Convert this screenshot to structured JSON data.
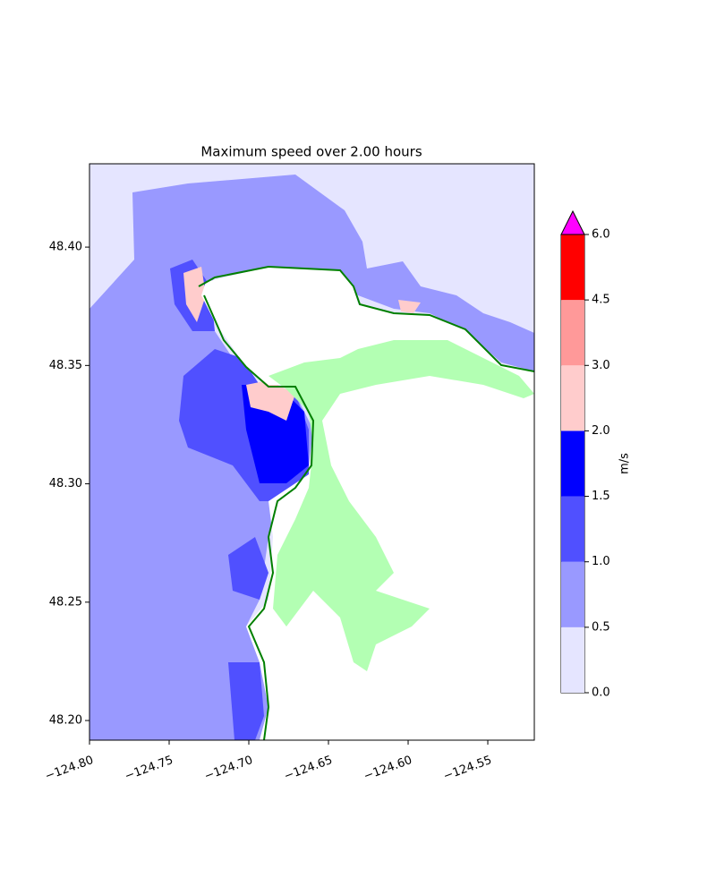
{
  "chart_data": {
    "type": "map",
    "title": "Maximum speed over 2.00 hours",
    "xlim": [
      -124.8,
      -124.5208
    ],
    "ylim": [
      48.1917,
      48.4352
    ],
    "xticks": [
      {
        "value": -124.8,
        "label": "−124.80"
      },
      {
        "value": -124.75,
        "label": "−124.75"
      },
      {
        "value": -124.7,
        "label": "−124.70"
      },
      {
        "value": -124.65,
        "label": "−124.65"
      },
      {
        "value": -124.6,
        "label": "−124.60"
      },
      {
        "value": -124.55,
        "label": "−124.55"
      }
    ],
    "yticks": [
      {
        "value": 48.2,
        "label": "48.20"
      },
      {
        "value": 48.25,
        "label": "48.25"
      },
      {
        "value": 48.3,
        "label": "48.30"
      },
      {
        "value": 48.35,
        "label": "48.35"
      },
      {
        "value": 48.4,
        "label": "48.40"
      }
    ],
    "colorbar": {
      "label": "m/s",
      "boundaries": [
        {
          "value": 0,
          "label": "0.0"
        },
        {
          "value": 0.5,
          "label": "0.5"
        },
        {
          "value": 1,
          "label": "1.0"
        },
        {
          "value": 1.5,
          "label": "1.5"
        },
        {
          "value": 2,
          "label": "2.0"
        },
        {
          "value": 3,
          "label": "3.0"
        },
        {
          "value": 4.5,
          "label": "4.5"
        },
        {
          "value": 6,
          "label": "6.0"
        }
      ],
      "colors": [
        "#e5e5ff",
        "#9999ff",
        "#5050ff",
        "#0000ff",
        "#ffcccc",
        "#ff9999",
        "#ff0000"
      ],
      "extend_color": "#ff00ff"
    }
  }
}
